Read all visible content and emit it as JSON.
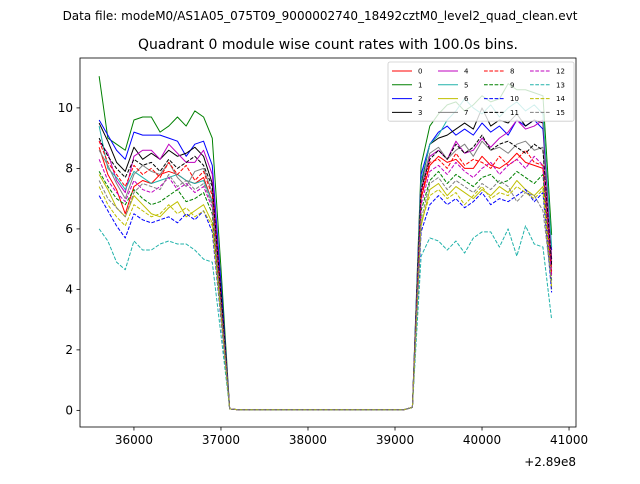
{
  "chart_data": {
    "type": "line",
    "suptitle": "Data file: modeM0/AS1A05_075T09_9000002740_18492cztM0_level2_quad_clean.evt",
    "title": "Quadrant 0 module wise count rates with 100.0s bins.",
    "xlabel": "",
    "ylabel": "",
    "x_offset_label": "+2.89e8",
    "xlim": [
      35380,
      41080
    ],
    "ylim": [
      -0.55,
      11.65
    ],
    "xticks": [
      36000,
      37000,
      38000,
      39000,
      40000,
      41000
    ],
    "xtick_labels": [
      "36000",
      "37000",
      "38000",
      "39000",
      "40000",
      "41000"
    ],
    "yticks": [
      0,
      2,
      4,
      6,
      8,
      10
    ],
    "ytick_labels": [
      "0",
      "2",
      "4",
      "6",
      "8",
      "10"
    ],
    "legend_position": "top-right",
    "legend_columns": 4,
    "seg1_x": [
      35600,
      35700,
      35800,
      35900,
      36000,
      36100,
      36200,
      36300,
      36400,
      36500,
      36600,
      36700,
      36800,
      36900,
      37000,
      37100
    ],
    "seg2_x": [
      39200,
      39300,
      39400,
      39500,
      39600,
      39700,
      39800,
      39900,
      40000,
      40100,
      40200,
      40300,
      40400,
      40500,
      40600,
      40700,
      40800
    ],
    "gap_x": [
      37200,
      37300,
      37400,
      37500,
      37600,
      37700,
      37800,
      37900,
      38000,
      38100,
      38200,
      38300,
      38400,
      38500,
      38600,
      38700,
      38800,
      38900,
      39000,
      39100
    ],
    "series": [
      {
        "name": "0",
        "color": "#ff0000",
        "dash": false,
        "seg1": [
          8.7,
          7.8,
          7.3,
          6.5,
          7.4,
          7.6,
          7.5,
          7.8,
          7.9,
          7.8,
          7.6,
          7.5,
          7.7,
          6.9,
          3.5,
          0.05
        ],
        "seg2": [
          0.1,
          7.0,
          8.1,
          8.4,
          8.2,
          8.3,
          8.0,
          8.0,
          8.4,
          8.1,
          8.0,
          8.2,
          8.5,
          8.2,
          8.1,
          8.0,
          4.5
        ]
      },
      {
        "name": "1",
        "color": "#008000",
        "dash": false,
        "seg1": [
          11.05,
          9.0,
          8.8,
          8.6,
          9.6,
          9.7,
          9.7,
          9.2,
          9.4,
          9.7,
          9.4,
          9.9,
          9.7,
          9.0,
          4.7,
          0.05
        ],
        "seg2": [
          0.1,
          8.1,
          9.4,
          9.8,
          10.1,
          10.2,
          9.9,
          10.1,
          10.4,
          10.2,
          10.3,
          10.8,
          10.6,
          10.6,
          10.5,
          10.4,
          5.8
        ]
      },
      {
        "name": "2",
        "color": "#0000ff",
        "dash": false,
        "seg1": [
          9.6,
          9.1,
          8.6,
          8.3,
          9.2,
          9.1,
          9.1,
          9.1,
          9.0,
          8.9,
          8.4,
          8.8,
          8.9,
          8.1,
          4.2,
          0.05
        ],
        "seg2": [
          0.1,
          7.8,
          8.8,
          9.2,
          9.4,
          9.1,
          9.3,
          9.1,
          9.5,
          9.2,
          9.4,
          9.1,
          9.6,
          9.4,
          9.6,
          9.3,
          5.3
        ]
      },
      {
        "name": "3",
        "color": "#000000",
        "dash": false,
        "seg1": [
          9.5,
          8.9,
          8.2,
          7.9,
          8.7,
          8.3,
          8.5,
          8.3,
          8.6,
          8.4,
          8.5,
          8.7,
          8.4,
          7.5,
          3.9,
          0.05
        ],
        "seg2": [
          0.1,
          7.5,
          8.8,
          9.0,
          9.1,
          9.3,
          9.5,
          9.3,
          10.0,
          9.4,
          9.6,
          9.5,
          9.8,
          9.4,
          9.6,
          9.5,
          5.0
        ]
      },
      {
        "name": "4",
        "color": "#bf00bf",
        "dash": false,
        "seg1": [
          8.9,
          8.5,
          7.6,
          7.2,
          8.4,
          8.6,
          8.6,
          8.3,
          8.8,
          8.5,
          8.2,
          8.2,
          8.6,
          7.8,
          3.8,
          0.05
        ],
        "seg2": [
          0.1,
          7.2,
          8.4,
          8.6,
          8.3,
          8.9,
          8.5,
          8.6,
          9.0,
          8.7,
          9.0,
          9.2,
          9.6,
          9.3,
          9.4,
          9.6,
          4.9
        ]
      },
      {
        "name": "5",
        "color": "#20b2aa",
        "dash": false,
        "seg1": [
          9.4,
          8.0,
          7.7,
          7.3,
          7.9,
          7.7,
          7.5,
          7.6,
          7.7,
          7.8,
          7.6,
          7.5,
          7.6,
          6.9,
          3.6,
          0.05
        ],
        "seg2": [
          0.1,
          7.6,
          8.8,
          9.1,
          9.6,
          9.9,
          10.3,
          10.0,
          9.8,
          10.1,
          9.7,
          10.0,
          10.2,
          9.9,
          10.1,
          9.8,
          5.4
        ]
      },
      {
        "name": "6",
        "color": "#bfbf00",
        "dash": false,
        "seg1": [
          7.8,
          7.3,
          6.7,
          6.4,
          7.1,
          6.8,
          6.5,
          6.4,
          6.7,
          6.9,
          6.4,
          6.6,
          6.8,
          6.2,
          3.2,
          0.05
        ],
        "seg2": [
          0.1,
          6.1,
          7.3,
          7.5,
          7.1,
          7.4,
          7.2,
          7.0,
          7.3,
          7.1,
          7.4,
          7.2,
          7.6,
          7.3,
          7.1,
          7.4,
          4.0
        ]
      },
      {
        "name": "7",
        "color": "#808080",
        "dash": false,
        "seg1": [
          8.6,
          8.1,
          7.5,
          7.0,
          7.8,
          8.1,
          7.9,
          7.8,
          8.2,
          7.7,
          7.4,
          7.9,
          8.0,
          7.2,
          3.7,
          0.05
        ],
        "seg2": [
          0.1,
          7.4,
          8.5,
          8.7,
          8.3,
          8.6,
          8.8,
          8.4,
          8.9,
          8.6,
          8.7,
          8.5,
          8.8,
          8.9,
          8.6,
          8.7,
          4.7
        ]
      },
      {
        "name": "8",
        "color": "#ff0000",
        "dash": true,
        "seg1": [
          8.9,
          8.2,
          7.8,
          7.4,
          8.1,
          7.8,
          8.0,
          7.7,
          8.2,
          7.8,
          8.1,
          7.6,
          7.9,
          7.1,
          3.6,
          0.05
        ],
        "seg2": [
          0.1,
          7.1,
          8.2,
          8.3,
          8.0,
          8.5,
          8.1,
          8.3,
          8.2,
          8.0,
          8.4,
          8.1,
          8.3,
          8.6,
          8.2,
          8.1,
          4.6
        ]
      },
      {
        "name": "9",
        "color": "#008000",
        "dash": true,
        "seg1": [
          7.9,
          7.4,
          7.0,
          6.8,
          7.3,
          7.0,
          6.8,
          6.9,
          7.1,
          7.3,
          6.9,
          7.0,
          7.2,
          6.5,
          3.3,
          0.05
        ],
        "seg2": [
          0.1,
          6.6,
          7.6,
          7.9,
          7.5,
          7.8,
          7.6,
          7.4,
          7.7,
          7.8,
          7.5,
          7.6,
          7.9,
          7.7,
          7.5,
          7.8,
          4.3
        ]
      },
      {
        "name": "10",
        "color": "#0000ff",
        "dash": true,
        "seg1": [
          7.1,
          6.6,
          6.1,
          5.7,
          6.5,
          6.3,
          6.2,
          6.3,
          6.4,
          6.2,
          6.5,
          6.3,
          6.6,
          5.9,
          3.0,
          0.05
        ],
        "seg2": [
          0.1,
          5.9,
          6.8,
          7.1,
          6.8,
          7.0,
          6.7,
          6.9,
          7.2,
          6.8,
          7.0,
          6.9,
          7.1,
          7.3,
          6.9,
          7.2,
          3.9
        ]
      },
      {
        "name": "11",
        "color": "#000000",
        "dash": true,
        "seg1": [
          9.0,
          8.4,
          8.0,
          7.7,
          8.3,
          8.1,
          8.2,
          7.9,
          8.3,
          8.0,
          8.2,
          8.4,
          8.1,
          7.4,
          3.8,
          0.05
        ],
        "seg2": [
          0.1,
          7.3,
          8.3,
          8.6,
          8.3,
          8.8,
          8.5,
          8.7,
          9.1,
          8.6,
          8.8,
          8.9,
          8.7,
          8.5,
          8.8,
          8.6,
          4.8
        ]
      },
      {
        "name": "12",
        "color": "#bf00bf",
        "dash": true,
        "seg1": [
          8.3,
          7.6,
          7.2,
          6.9,
          7.6,
          7.3,
          7.2,
          7.4,
          7.7,
          7.3,
          7.5,
          7.2,
          7.4,
          6.7,
          3.4,
          0.05
        ],
        "seg2": [
          0.1,
          6.8,
          7.9,
          8.1,
          7.8,
          8.2,
          7.9,
          7.7,
          8.0,
          8.2,
          7.8,
          8.1,
          8.3,
          8.0,
          8.4,
          8.1,
          4.4
        ]
      },
      {
        "name": "13",
        "color": "#20b2aa",
        "dash": true,
        "seg1": [
          6.0,
          5.6,
          4.9,
          4.65,
          5.6,
          5.3,
          5.3,
          5.5,
          5.6,
          5.5,
          5.5,
          5.3,
          5.0,
          4.9,
          2.5,
          0.05
        ],
        "seg2": [
          0.1,
          5.1,
          5.7,
          5.6,
          5.3,
          5.6,
          5.2,
          5.7,
          5.9,
          5.9,
          5.4,
          6.0,
          5.1,
          6.1,
          5.5,
          5.4,
          3.0
        ]
      },
      {
        "name": "14",
        "color": "#bfbf00",
        "dash": true,
        "seg1": [
          7.4,
          6.8,
          6.4,
          6.1,
          6.8,
          6.6,
          6.4,
          6.5,
          6.8,
          6.5,
          6.7,
          6.4,
          6.6,
          6.1,
          3.1,
          0.05
        ],
        "seg2": [
          0.1,
          6.2,
          7.1,
          7.3,
          7.0,
          7.2,
          6.8,
          7.1,
          7.4,
          7.0,
          7.2,
          7.1,
          7.4,
          7.2,
          7.0,
          7.3,
          4.1
        ]
      },
      {
        "name": "15",
        "color": "#808080",
        "dash": true,
        "seg1": [
          7.6,
          7.0,
          6.7,
          6.4,
          7.2,
          7.5,
          7.4,
          7.3,
          7.8,
          7.4,
          7.6,
          7.3,
          7.5,
          6.8,
          3.4,
          0.05
        ],
        "seg2": [
          0.1,
          6.3,
          7.5,
          7.7,
          7.3,
          7.6,
          7.4,
          7.2,
          7.5,
          7.3,
          7.6,
          7.4,
          6.9,
          7.2,
          7.1,
          6.6,
          4.2
        ]
      }
    ]
  }
}
